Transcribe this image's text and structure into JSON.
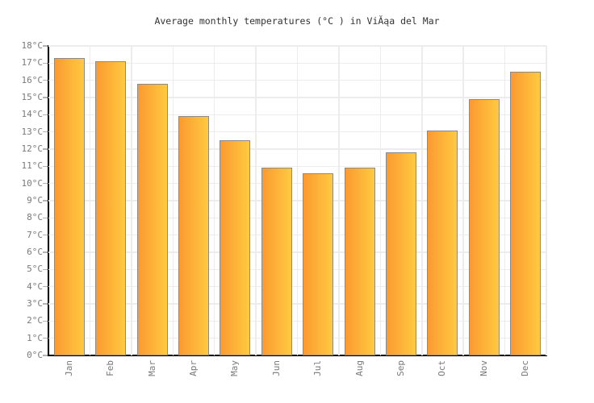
{
  "chart": {
    "title": "Average monthly temperatures (°C ) in ViĂąa del Mar"
  },
  "chart_data": {
    "type": "bar",
    "title": "Average monthly temperatures (°C ) in ViĂąa del Mar",
    "categories": [
      "Jan",
      "Feb",
      "Mar",
      "Apr",
      "May",
      "Jun",
      "Jul",
      "Aug",
      "Sep",
      "Oct",
      "Nov",
      "Dec"
    ],
    "values": [
      17.3,
      17.1,
      15.8,
      13.9,
      12.5,
      10.9,
      10.6,
      10.9,
      11.8,
      13.1,
      14.9,
      16.5
    ],
    "xlabel": "",
    "ylabel": "",
    "ylim": [
      0,
      18
    ],
    "y_tick_step": 1,
    "y_tick_labels": [
      "0°C",
      "1°C",
      "2°C",
      "3°C",
      "4°C",
      "5°C",
      "6°C",
      "7°C",
      "8°C",
      "9°C",
      "10°C",
      "11°C",
      "12°C",
      "13°C",
      "14°C",
      "15°C",
      "16°C",
      "17°C",
      "18°C"
    ],
    "grid": true,
    "legend": false,
    "colors": {
      "bar_gradient_left": "#fb9a31",
      "bar_gradient_right": "#ffca40",
      "bar_border": "#8a8a8a",
      "gridline": "#ececec",
      "axis": "#000000",
      "tick": "#b3b3b3",
      "label_text": "#7a7a7a",
      "title_text": "#333333",
      "background": "#ffffff"
    }
  }
}
